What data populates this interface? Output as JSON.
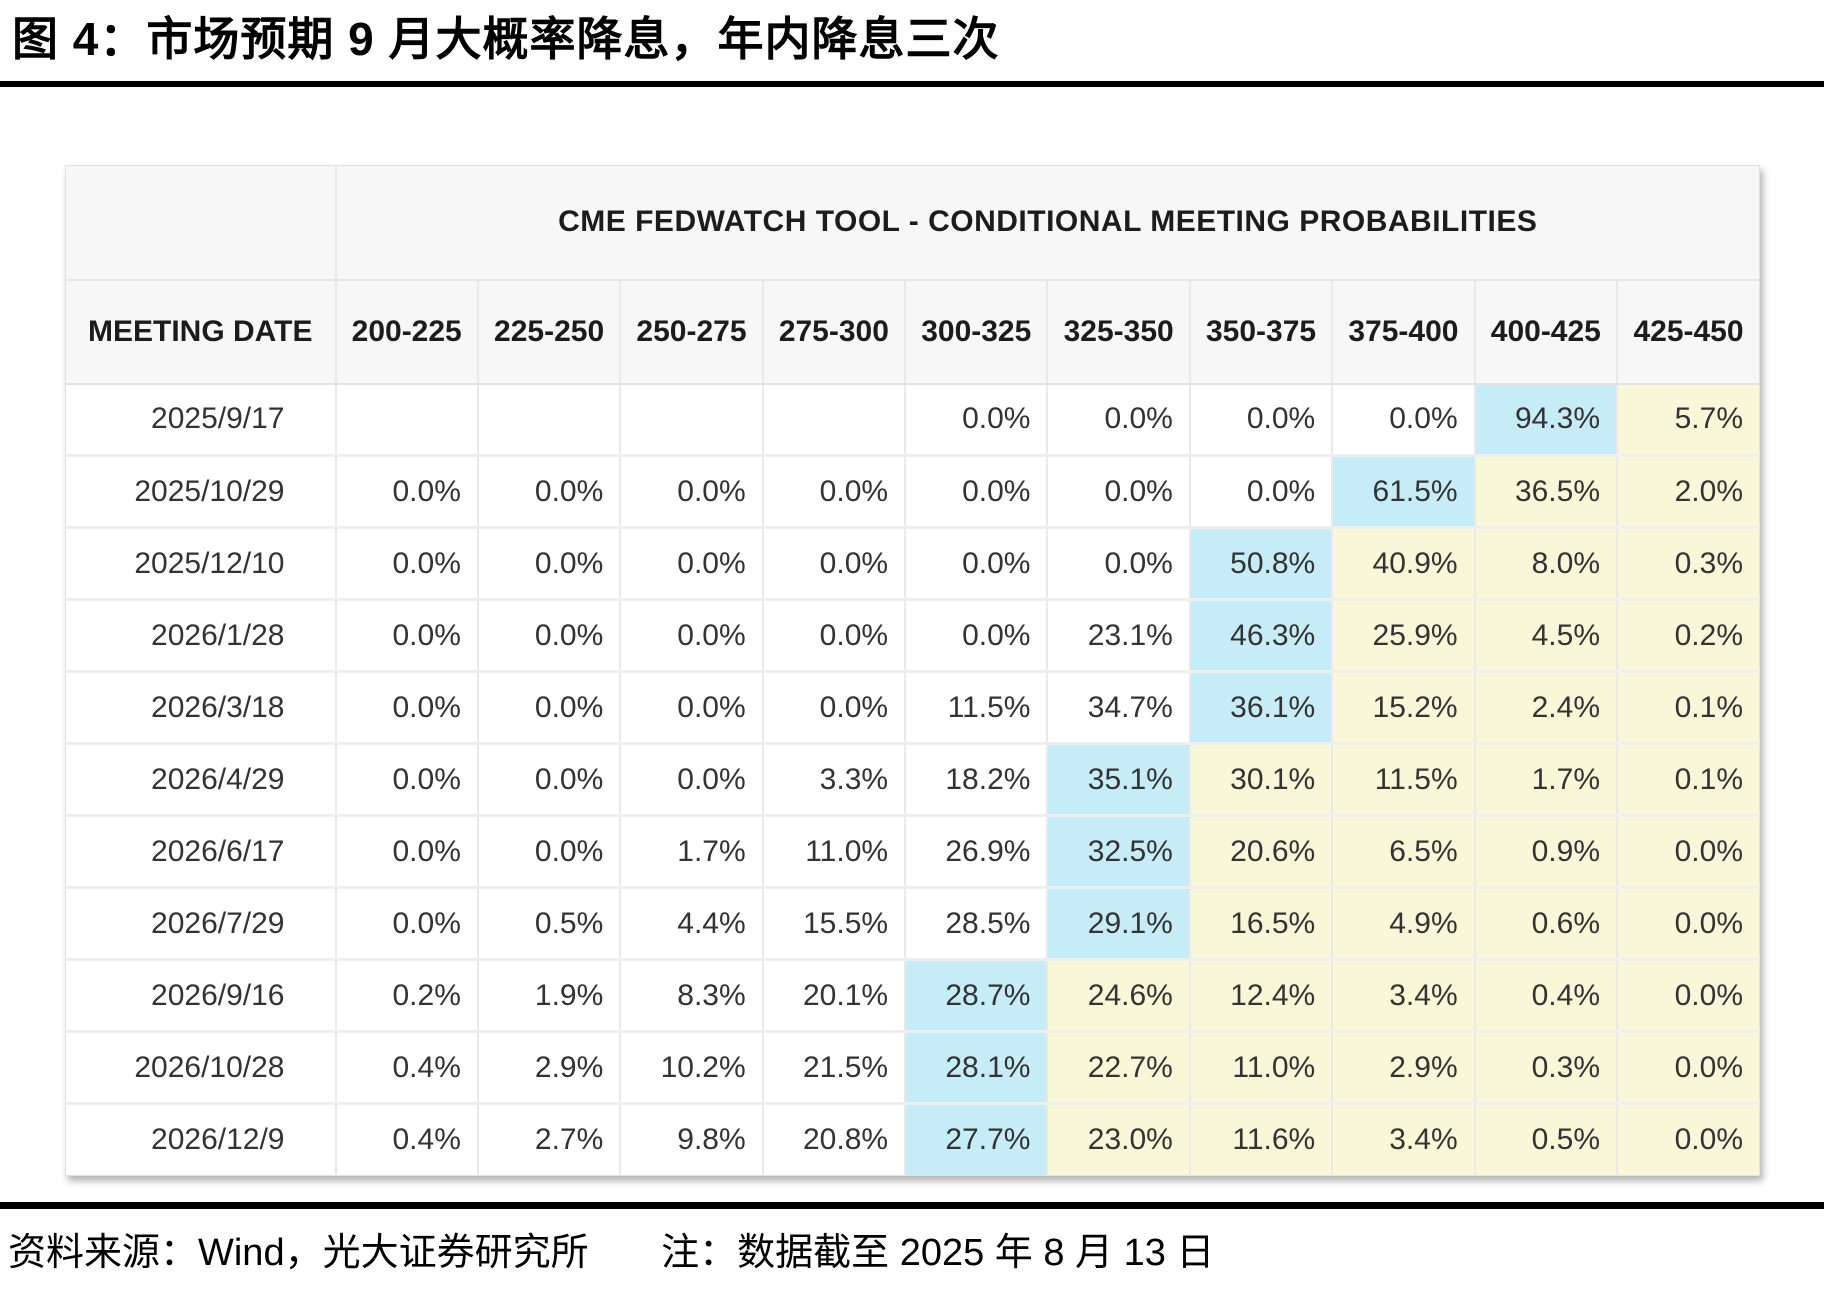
{
  "page": {
    "title": "图 4：市场预期 9 月大概率降息，年内降息三次",
    "footer": {
      "source": "资料来源：Wind，光大证券研究所",
      "note": "注：数据截至 2025 年 8 月 13 日"
    }
  },
  "chart_data": {
    "type": "table",
    "title": "CME FEDWATCH TOOL - CONDITIONAL MEETING PROBABILITIES",
    "columns": [
      "MEETING DATE",
      "200-225",
      "225-250",
      "250-275",
      "275-300",
      "300-325",
      "325-350",
      "350-375",
      "375-400",
      "400-425",
      "425-450"
    ],
    "rows": [
      {
        "date": "2025/9/17",
        "values": [
          "",
          "",
          "",
          "",
          "0.0%",
          "0.0%",
          "0.0%",
          "0.0%",
          "94.3%",
          "5.7%"
        ],
        "highlight": [
          "",
          "",
          "",
          "",
          "",
          "",
          "",
          "",
          "blue",
          "yellow"
        ]
      },
      {
        "date": "2025/10/29",
        "values": [
          "0.0%",
          "0.0%",
          "0.0%",
          "0.0%",
          "0.0%",
          "0.0%",
          "0.0%",
          "61.5%",
          "36.5%",
          "2.0%"
        ],
        "highlight": [
          "",
          "",
          "",
          "",
          "",
          "",
          "",
          "blue",
          "yellow",
          "yellow"
        ]
      },
      {
        "date": "2025/12/10",
        "values": [
          "0.0%",
          "0.0%",
          "0.0%",
          "0.0%",
          "0.0%",
          "0.0%",
          "50.8%",
          "40.9%",
          "8.0%",
          "0.3%"
        ],
        "highlight": [
          "",
          "",
          "",
          "",
          "",
          "",
          "blue",
          "yellow",
          "yellow",
          "yellow"
        ]
      },
      {
        "date": "2026/1/28",
        "values": [
          "0.0%",
          "0.0%",
          "0.0%",
          "0.0%",
          "0.0%",
          "23.1%",
          "46.3%",
          "25.9%",
          "4.5%",
          "0.2%"
        ],
        "highlight": [
          "",
          "",
          "",
          "",
          "",
          "",
          "blue",
          "yellow",
          "yellow",
          "yellow"
        ]
      },
      {
        "date": "2026/3/18",
        "values": [
          "0.0%",
          "0.0%",
          "0.0%",
          "0.0%",
          "11.5%",
          "34.7%",
          "36.1%",
          "15.2%",
          "2.4%",
          "0.1%"
        ],
        "highlight": [
          "",
          "",
          "",
          "",
          "",
          "",
          "blue",
          "yellow",
          "yellow",
          "yellow"
        ]
      },
      {
        "date": "2026/4/29",
        "values": [
          "0.0%",
          "0.0%",
          "0.0%",
          "3.3%",
          "18.2%",
          "35.1%",
          "30.1%",
          "11.5%",
          "1.7%",
          "0.1%"
        ],
        "highlight": [
          "",
          "",
          "",
          "",
          "",
          "blue",
          "yellow",
          "yellow",
          "yellow",
          "yellow"
        ]
      },
      {
        "date": "2026/6/17",
        "values": [
          "0.0%",
          "0.0%",
          "1.7%",
          "11.0%",
          "26.9%",
          "32.5%",
          "20.6%",
          "6.5%",
          "0.9%",
          "0.0%"
        ],
        "highlight": [
          "",
          "",
          "",
          "",
          "",
          "blue",
          "yellow",
          "yellow",
          "yellow",
          "yellow"
        ]
      },
      {
        "date": "2026/7/29",
        "values": [
          "0.0%",
          "0.5%",
          "4.4%",
          "15.5%",
          "28.5%",
          "29.1%",
          "16.5%",
          "4.9%",
          "0.6%",
          "0.0%"
        ],
        "highlight": [
          "",
          "",
          "",
          "",
          "",
          "blue",
          "yellow",
          "yellow",
          "yellow",
          "yellow"
        ]
      },
      {
        "date": "2026/9/16",
        "values": [
          "0.2%",
          "1.9%",
          "8.3%",
          "20.1%",
          "28.7%",
          "24.6%",
          "12.4%",
          "3.4%",
          "0.4%",
          "0.0%"
        ],
        "highlight": [
          "",
          "",
          "",
          "",
          "blue",
          "yellow",
          "yellow",
          "yellow",
          "yellow",
          "yellow"
        ]
      },
      {
        "date": "2026/10/28",
        "values": [
          "0.4%",
          "2.9%",
          "10.2%",
          "21.5%",
          "28.1%",
          "22.7%",
          "11.0%",
          "2.9%",
          "0.3%",
          "0.0%"
        ],
        "highlight": [
          "",
          "",
          "",
          "",
          "blue",
          "yellow",
          "yellow",
          "yellow",
          "yellow",
          "yellow"
        ]
      },
      {
        "date": "2026/12/9",
        "values": [
          "0.4%",
          "2.7%",
          "9.8%",
          "20.8%",
          "27.7%",
          "23.0%",
          "11.6%",
          "3.4%",
          "0.5%",
          "0.0%"
        ],
        "highlight": [
          "",
          "",
          "",
          "",
          "blue",
          "yellow",
          "yellow",
          "yellow",
          "yellow",
          "yellow"
        ]
      }
    ],
    "colors": {
      "highlight_blue": "#C6ECF8",
      "highlight_yellow": "#F8F8D8",
      "header_bg": "#F7F7F7",
      "title_rule": "#000000"
    },
    "layout": {
      "legend": "off",
      "grid": "cell-borders",
      "first_column_header": "MEETING DATE"
    }
  }
}
